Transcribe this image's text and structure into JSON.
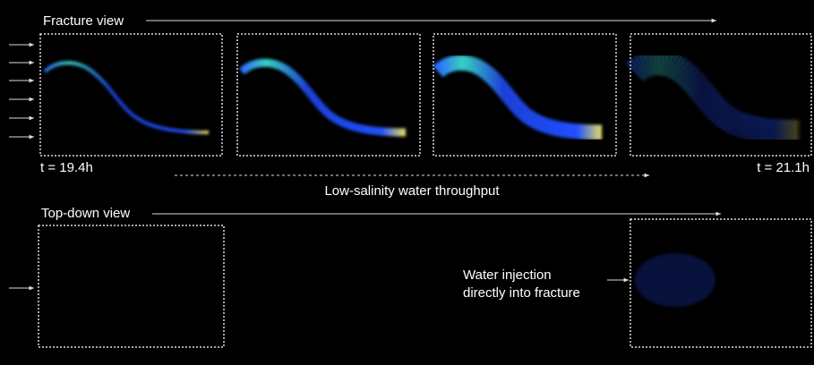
{
  "fracture_view": {
    "title": "Fracture view",
    "start_time": "t = 19.4h",
    "end_time": "t = 21.1h",
    "throughput_label": "Low-salinity water throughput"
  },
  "top_down_view": {
    "title": "Top-down view",
    "annotation": [
      "Water injection",
      "directly into fracture"
    ]
  }
}
